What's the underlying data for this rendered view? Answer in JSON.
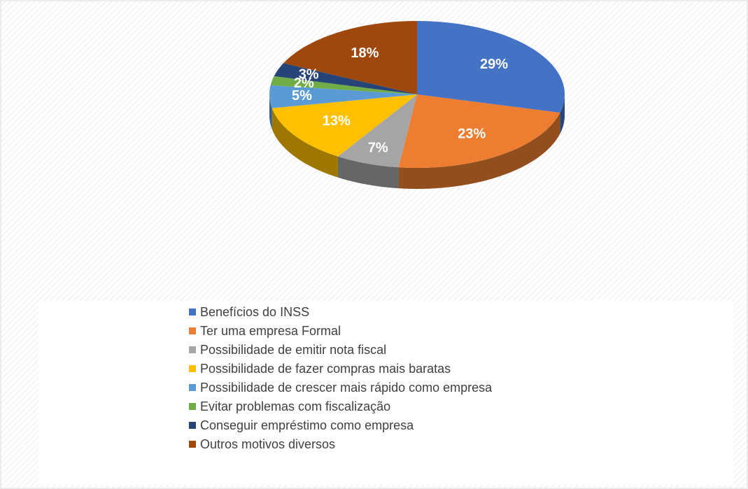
{
  "chart_data": {
    "type": "pie",
    "categories": [
      "Benefícios do INSS",
      "Ter uma empresa Formal",
      "Possibilidade de emitir nota fiscal",
      "Possibilidade de fazer compras mais baratas",
      "Possibilidade de crescer mais rápido como empresa",
      "Evitar problemas com fiscalização",
      "Conseguir empréstimo como empresa",
      "Outros motivos diversos"
    ],
    "values": [
      29,
      23,
      7,
      13,
      5,
      2,
      3,
      18
    ],
    "value_labels": [
      "29%",
      "23%",
      "7%",
      "13%",
      "5%",
      "2%",
      "3%",
      "18%"
    ],
    "colors": [
      "#4472c4",
      "#ed7d31",
      "#a5a5a5",
      "#ffc000",
      "#5b9bd5",
      "#70ad47",
      "#264478",
      "#9e480e"
    ],
    "legend": "bottom"
  }
}
